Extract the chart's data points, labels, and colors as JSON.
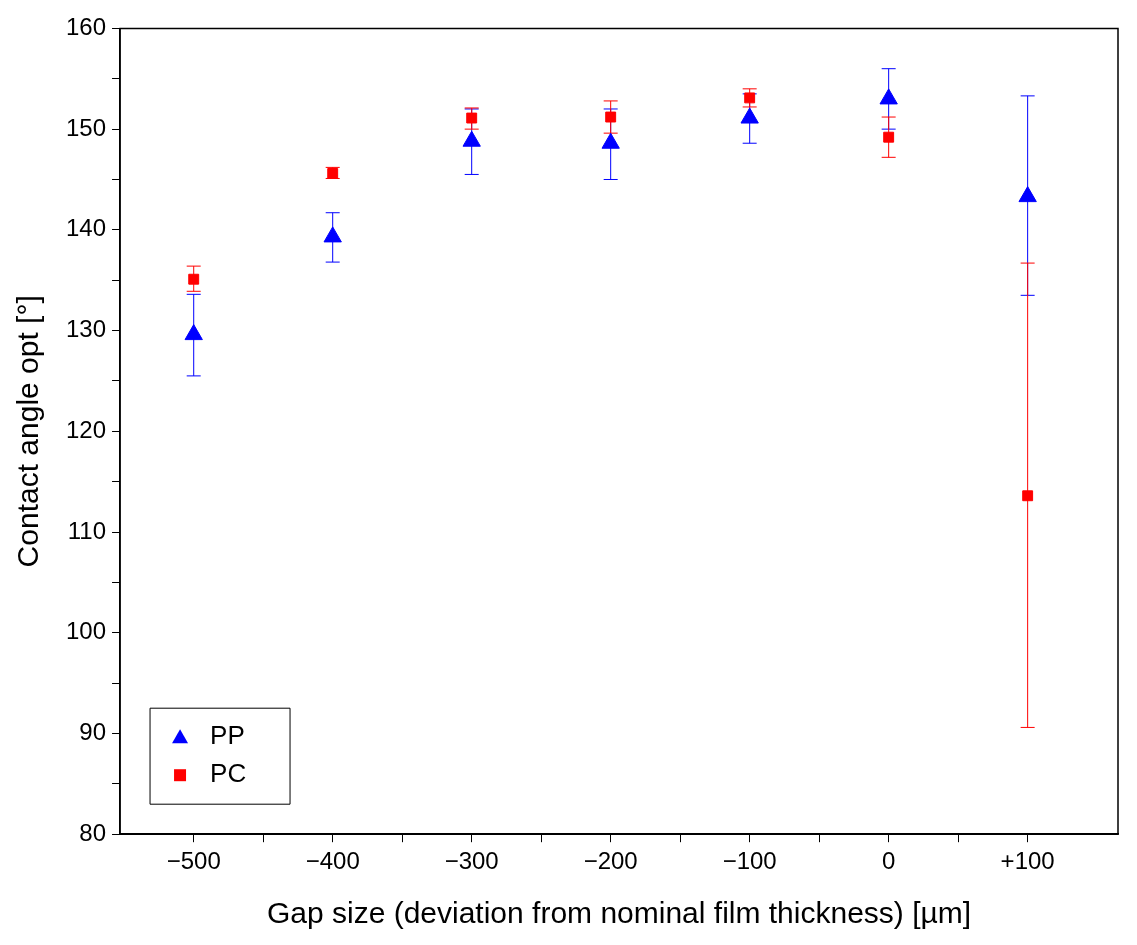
{
  "chart_data": {
    "type": "scatter",
    "xlabel": "Gap size (deviation from nominal film thickness) [µm]",
    "ylabel": "Contact angle opt [°]",
    "x": [
      -500,
      -400,
      -300,
      -200,
      -100,
      0,
      100
    ],
    "xlim": [
      -553,
      165
    ],
    "xticks": [
      {
        "value": -500,
        "label": "−500"
      },
      {
        "value": -450,
        "label": null
      },
      {
        "value": -400,
        "label": "−400"
      },
      {
        "value": -350,
        "label": null
      },
      {
        "value": -300,
        "label": "−300"
      },
      {
        "value": -250,
        "label": null
      },
      {
        "value": -200,
        "label": "−200"
      },
      {
        "value": -150,
        "label": null
      },
      {
        "value": -100,
        "label": "−100"
      },
      {
        "value": -50,
        "label": null
      },
      0,
      {
        "value": 50,
        "label": null
      },
      {
        "value": 100,
        "label": "+100"
      }
    ],
    "ylim": [
      80,
      160
    ],
    "yticks": [
      80,
      {
        "value": 85,
        "label": null
      },
      90,
      {
        "value": 95,
        "label": null
      },
      100,
      {
        "value": 105,
        "label": null
      },
      110,
      {
        "value": 115,
        "label": null
      },
      120,
      {
        "value": 125,
        "label": null
      },
      130,
      {
        "value": 135,
        "label": null
      },
      140,
      {
        "value": 145,
        "label": null
      },
      150,
      {
        "value": 155,
        "label": null
      },
      160
    ],
    "legend": "bottom left",
    "series": [
      {
        "name": "PP",
        "color": "#0000ff",
        "marker": "triangle",
        "values": [
          129.6,
          139.3,
          148.8,
          148.6,
          151.1,
          153.0,
          143.3
        ],
        "errors": [
          [
            125.5,
            133.6
          ],
          [
            136.8,
            141.7
          ],
          [
            145.5,
            152.0
          ],
          [
            145.0,
            152.0
          ],
          [
            148.6,
            153.5
          ],
          [
            150.0,
            156.0
          ],
          [
            133.5,
            153.3
          ]
        ]
      },
      {
        "name": "PC",
        "color": "#ff0000",
        "marker": "square",
        "values": [
          135.1,
          145.6,
          151.1,
          151.2,
          153.1,
          149.2,
          113.6
        ],
        "errors": [
          [
            133.9,
            136.4
          ],
          [
            145.1,
            146.2
          ],
          [
            150.0,
            152.1
          ],
          [
            149.6,
            152.8
          ],
          [
            152.2,
            154.0
          ],
          [
            147.2,
            151.2
          ],
          [
            90.6,
            136.7
          ]
        ]
      }
    ]
  }
}
